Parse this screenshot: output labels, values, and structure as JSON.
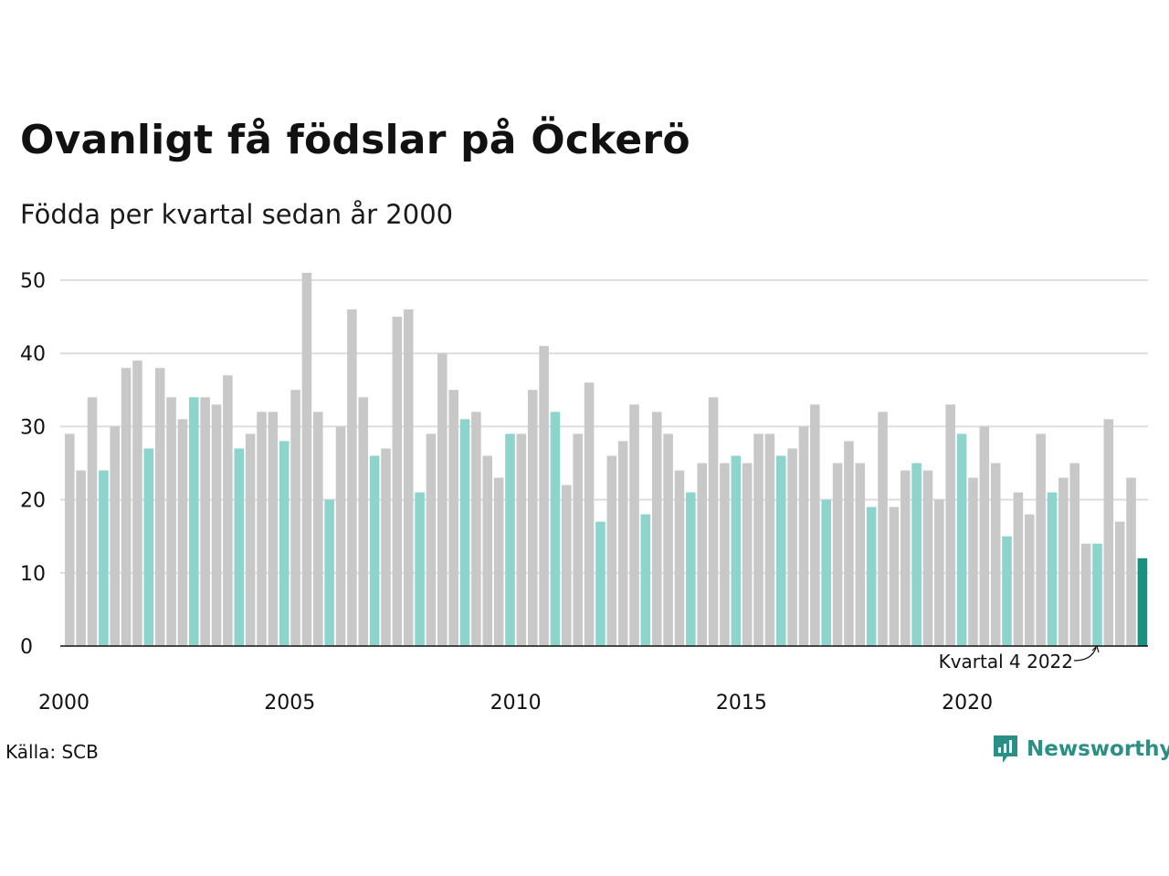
{
  "title": "Ovanligt få födslar på Öckerö",
  "subtitle": "Födda per kvartal sedan år 2000",
  "source": "Källa: SCB",
  "brand": "Newsworthy",
  "annotation": "Kvartal 4 2022",
  "colors": {
    "other": "#c8c8c8",
    "q4": "#8dd4cc",
    "latest": "#1a9080",
    "grid": "#dddddd",
    "brand": "#2a8f84"
  },
  "chart_data": {
    "type": "bar",
    "title": "Ovanligt få födslar på Öckerö",
    "subtitle": "Födda per kvartal sedan år 2000",
    "xlabel": "",
    "ylabel": "",
    "ylim": [
      0,
      50
    ],
    "yticks": [
      0,
      10,
      20,
      30,
      40,
      50
    ],
    "xticks": [
      "2000",
      "2005",
      "2010",
      "2015",
      "2020"
    ],
    "grid": true,
    "start_year": 2000,
    "values": [
      29,
      24,
      34,
      24,
      30,
      38,
      39,
      27,
      38,
      34,
      31,
      34,
      34,
      33,
      37,
      27,
      29,
      32,
      32,
      28,
      35,
      51,
      32,
      20,
      30,
      46,
      34,
      26,
      27,
      45,
      46,
      21,
      29,
      40,
      35,
      31,
      32,
      26,
      23,
      29,
      29,
      35,
      41,
      32,
      22,
      29,
      36,
      17,
      26,
      28,
      33,
      18,
      32,
      29,
      24,
      21,
      25,
      34,
      25,
      26,
      25,
      29,
      29,
      26,
      27,
      30,
      33,
      20,
      25,
      28,
      25,
      19,
      32,
      19,
      24,
      25,
      24,
      20,
      33,
      29,
      23,
      30,
      25,
      15,
      21,
      18,
      29,
      21,
      23,
      25,
      14,
      14,
      31,
      17,
      23,
      12
    ]
  }
}
